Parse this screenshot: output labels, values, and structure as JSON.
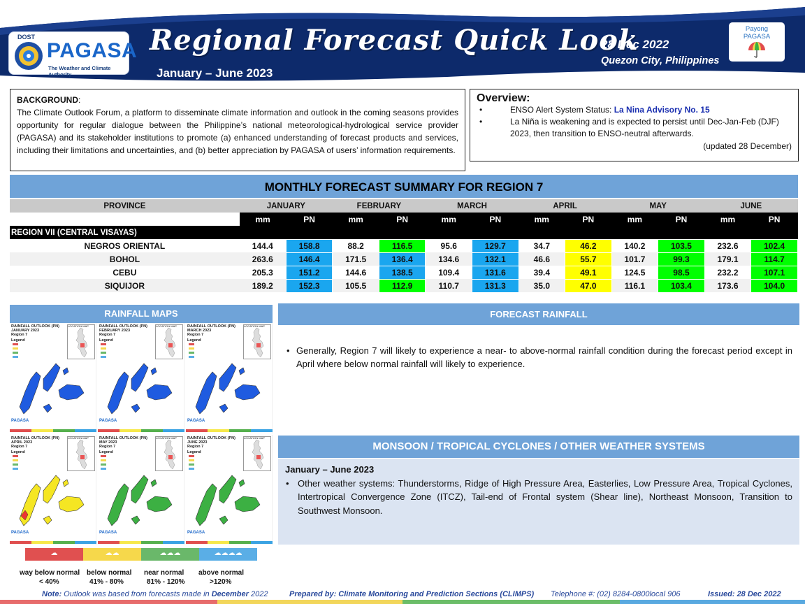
{
  "header": {
    "logo_org_short": "DOST",
    "logo_name": "PAGASA",
    "logo_tagline": "The Weather and Climate Authority",
    "title": "Regional Forecast Quick Look",
    "period": "January – June 2023",
    "date": "28 Dec 2022",
    "place": "Quezon City, Philippines",
    "payong_line1": "Payong",
    "payong_line2": "PAGASA",
    "colors": {
      "banner": "#0d2a6b",
      "accent": "#6fa3d8"
    }
  },
  "background": {
    "heading": "BACKGROUND",
    "text": "The Climate Outlook Forum, a platform to disseminate climate information and outlook in the coming seasons provides opportunity for regular dialogue between the Philippine’s national meteorological-hydrological service provider (PAGASA) and its stakeholder institutions to promote (a) enhanced understanding of forecast products and services, including their limitations and uncertainties, and (b) better appreciation by PAGASA of users’ information requirements."
  },
  "overview": {
    "title": "Overview:",
    "item1_prefix": "ENSO Alert System Status: ",
    "item1_link": "La Nina Advisory No. 15",
    "item2": "La Niña is weakening and is expected to persist until Dec-Jan-Feb (DJF) 2023, then transition to ENSO-neutral afterwards.",
    "updated": "(updated 28 December)"
  },
  "summary": {
    "title": "MONTHLY FORECAST SUMMARY FOR REGION 7",
    "province_header": "PROVINCE",
    "months": [
      "JANUARY",
      "FEBRUARY",
      "MARCH",
      "APRIL",
      "MAY",
      "JUNE"
    ],
    "unit_mm": "mm",
    "unit_pn": "PN",
    "region_label": "REGION VII (CENTRAL VISAYAS)",
    "rows": [
      {
        "province": "NEGROS ORIENTAL",
        "cells": [
          [
            "144.4",
            "158.8",
            "blue"
          ],
          [
            "88.2",
            "116.5",
            "green"
          ],
          [
            "95.6",
            "129.7",
            "blue"
          ],
          [
            "34.7",
            "46.2",
            "yellow"
          ],
          [
            "140.2",
            "103.5",
            "green"
          ],
          [
            "232.6",
            "102.4",
            "green"
          ]
        ]
      },
      {
        "province": "BOHOL",
        "cells": [
          [
            "263.6",
            "146.4",
            "blue"
          ],
          [
            "171.5",
            "136.4",
            "blue"
          ],
          [
            "134.6",
            "132.1",
            "blue"
          ],
          [
            "46.6",
            "55.7",
            "yellow"
          ],
          [
            "101.7",
            "99.3",
            "green"
          ],
          [
            "179.1",
            "114.7",
            "green"
          ]
        ]
      },
      {
        "province": "CEBU",
        "cells": [
          [
            "205.3",
            "151.2",
            "blue"
          ],
          [
            "144.6",
            "138.5",
            "blue"
          ],
          [
            "109.4",
            "131.6",
            "blue"
          ],
          [
            "39.4",
            "49.1",
            "yellow"
          ],
          [
            "124.5",
            "98.5",
            "green"
          ],
          [
            "232.2",
            "107.1",
            "green"
          ]
        ]
      },
      {
        "province": "SIQUIJOR",
        "cells": [
          [
            "189.2",
            "152.3",
            "blue"
          ],
          [
            "105.5",
            "112.9",
            "green"
          ],
          [
            "110.7",
            "131.3",
            "blue"
          ],
          [
            "35.0",
            "47.0",
            "yellow"
          ],
          [
            "116.1",
            "103.4",
            "green"
          ],
          [
            "173.6",
            "104.0",
            "green"
          ]
        ]
      }
    ]
  },
  "rainfall_maps": {
    "heading": "RAINFALL MAPS",
    "maps": [
      {
        "title1": "RAINFALL OUTLOOK (PN)",
        "title2": "JANUARY 2023",
        "title3": "Region 7",
        "fill": "#1f5be0"
      },
      {
        "title1": "RAINFALL OUTLOOK (PN)",
        "title2": "FEBRUARY 2023",
        "title3": "Region 7",
        "fill": "#1f5be0"
      },
      {
        "title1": "RAINFALL OUTLOOK (PN)",
        "title2": "MARCH 2023",
        "title3": "Region 7",
        "fill": "#1f5be0"
      },
      {
        "title1": "RAINFALL OUTLOOK (PN)",
        "title2": "APRIL 2023",
        "title3": "Region 7",
        "fill": "#f5e623"
      },
      {
        "title1": "RAINFALL OUTLOOK (PN)",
        "title2": "MAY 2023",
        "title3": "Region 7",
        "fill": "#3cb043"
      },
      {
        "title1": "RAINFALL OUTLOOK (PN)",
        "title2": "JUNE 2023",
        "title3": "Region 7",
        "fill": "#3cb043"
      }
    ],
    "legend_heading": "Legend",
    "location_map": "LOCATION MAP",
    "scale": [
      {
        "label": "way below normal",
        "range": "< 40%",
        "color": "#e05050"
      },
      {
        "label": "below normal",
        "range": "41% -  80%",
        "color": "#f6d84b"
      },
      {
        "label": "near normal",
        "range": "81% - 120%",
        "color": "#6ab86a"
      },
      {
        "label": "above normal",
        "range": ">120%",
        "color": "#5aaee6"
      }
    ]
  },
  "forecast_rainfall": {
    "heading": "FORECAST RAINFALL",
    "text": "Generally, Region 7 will likely to experience a near- to above-normal rainfall condition during the forecast period except in April where below normal rainfall will likely to experience."
  },
  "monsoon": {
    "heading": "MONSOON / TROPICAL CYCLONES / OTHER WEATHER SYSTEMS",
    "period": "January – June 2023",
    "text": "Other weather systems: Thunderstorms,  Ridge of High Pressure Area,  Easterlies, Low Pressure Area, Tropical Cyclones, Intertropical Convergence Zone (ITCZ), Tail-end of Frontal system (Shear line), Northeast Monsoon, Transition to Southwest Monsoon."
  },
  "footer": {
    "note_label": "Note:",
    "note_text": " Outlook was based from forecasts made in ",
    "note_month": "December",
    "note_year": "  2022",
    "prepared": "Prepared by: Climate Monitoring and Prediction Sections (CLIMPS)",
    "phone": "Telephone #: (02) 8284-0800local 906",
    "issued": "Issued: 28 Dec 2022"
  }
}
